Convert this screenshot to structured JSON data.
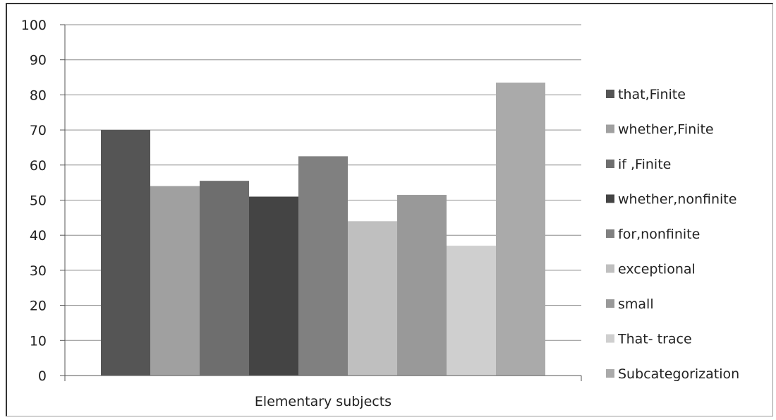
{
  "chart_data": {
    "type": "bar",
    "categories": [
      "Elementary subjects"
    ],
    "series": [
      {
        "name": "that,Finite",
        "values": [
          70
        ],
        "color": "#555555"
      },
      {
        "name": "whether,Finite",
        "values": [
          54
        ],
        "color": "#a0a0a0"
      },
      {
        "name": "if ,Finite",
        "values": [
          55.5
        ],
        "color": "#6e6e6e"
      },
      {
        "name": "whether,nonfinite",
        "values": [
          51
        ],
        "color": "#444444"
      },
      {
        "name": "for,nonfinite",
        "values": [
          62.5
        ],
        "color": "#808080"
      },
      {
        "name": "exceptional",
        "values": [
          44
        ],
        "color": "#bfbfbf"
      },
      {
        "name": "small",
        "values": [
          51.5
        ],
        "color": "#999999"
      },
      {
        "name": "That- trace",
        "values": [
          37
        ],
        "color": "#cfcfcf"
      },
      {
        "name": "Subcategorization",
        "values": [
          83.5
        ],
        "color": "#aaaaaa"
      }
    ],
    "yticks": [
      "0",
      "10",
      "20",
      "30",
      "40",
      "50",
      "60",
      "70",
      "80",
      "90",
      "100"
    ],
    "ylim": [
      0,
      100
    ],
    "grid": true,
    "legend_position": "right",
    "title": "",
    "xlabel": "",
    "ylabel": ""
  }
}
